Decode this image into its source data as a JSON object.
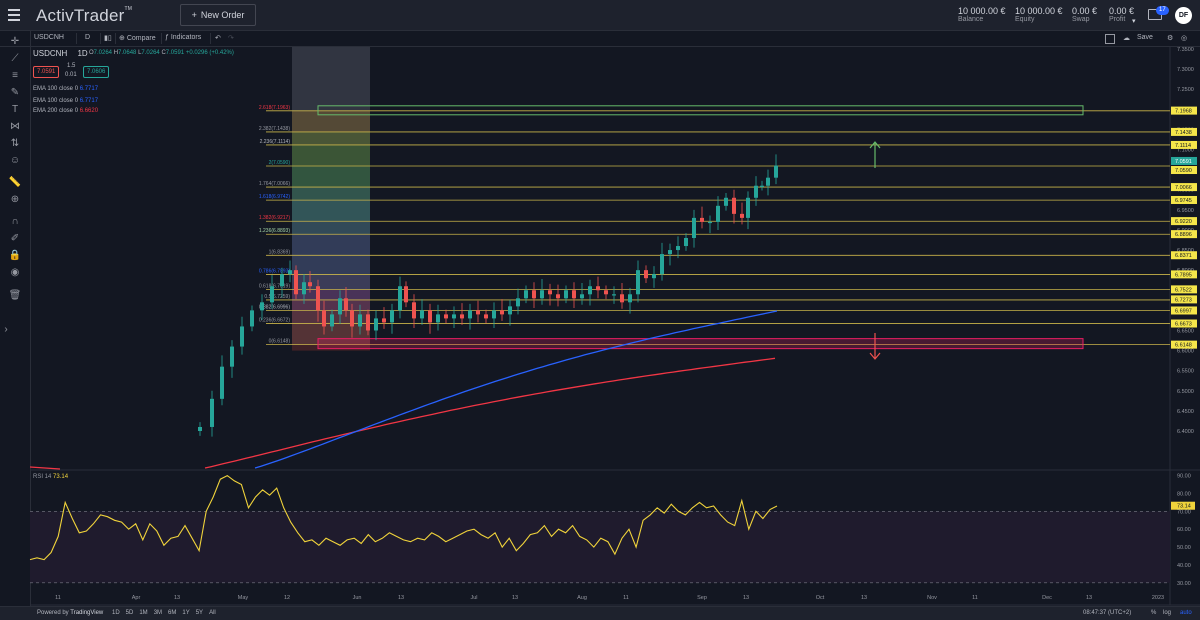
{
  "app": {
    "name": "ActivTrader",
    "new_order_label": "New Order"
  },
  "account": [
    {
      "value": "10 000.00 €",
      "label": "Balance"
    },
    {
      "value": "10 000.00 €",
      "label": "Equity"
    },
    {
      "value": "0.00 €",
      "label": "Swap"
    },
    {
      "value": "0.00 €",
      "label": "Profit"
    }
  ],
  "notifications": {
    "count": "17"
  },
  "user": {
    "initials": "DF"
  },
  "toolbar": {
    "symbol": "USDCNH",
    "interval": "D",
    "compare_label": "Compare",
    "indicators_label": "Indicators",
    "save_label": "Save"
  },
  "legend": {
    "symbol": "USDCNH",
    "interval": "1D",
    "o_key": "O",
    "o": "7.0264",
    "h_key": "H",
    "h": "7.0648",
    "l_key": "L",
    "l": "7.0264",
    "c_key": "C",
    "c": "7.0591",
    "change": "+0.0296 (+0.42%)",
    "sell": "7.0591",
    "spread_top": "1.5",
    "spread_bottom": "0.01",
    "buy": "7.0606"
  },
  "indicators": [
    {
      "label": "EMA 100 close 0",
      "value": "6.7717",
      "color": "#2962ff"
    },
    {
      "label": "EMA 100 close 0",
      "value": "6.7717",
      "color": "#2962ff"
    },
    {
      "label": "EMA 200 close 0",
      "value": "6.6620",
      "color": "#f23645"
    }
  ],
  "rsi": {
    "label": "RSI 14",
    "value": "73.14"
  },
  "price_axis": [
    "7.3500",
    "7.3000",
    "7.2500",
    "7.2000",
    "7.1500",
    "7.1000",
    "7.0500",
    "7.0000",
    "6.9500",
    "6.9000",
    "6.8500",
    "6.8000",
    "6.7500",
    "6.7000",
    "6.6500",
    "6.6000",
    "6.5500",
    "6.5000",
    "6.4500",
    "6.4000"
  ],
  "fib_axis_labels": [
    "7.1968",
    "7.1438",
    "7.1114",
    "7.0591",
    "7.0590",
    "7.0066",
    "6.9745",
    "6.9220",
    "6.8896",
    "6.8371",
    "6.7895",
    "6.7522",
    "6.7273",
    "6.6997",
    "6.6673",
    "6.6148"
  ],
  "fib_levels": [
    {
      "label": "2.618(7.1963)",
      "color": "#f23645"
    },
    {
      "label": "2.382(7.1438)",
      "color": "#9598a1"
    },
    {
      "label": "2.236(7.1114)",
      "color": "#b2b5be"
    },
    {
      "label": "2(7.0590)",
      "color": "#26a69a"
    },
    {
      "label": "1.764(7.0066)",
      "color": "#9598a1"
    },
    {
      "label": "1.618(6.9742)",
      "color": "#2962ff"
    },
    {
      "label": "1.382(6.9217)",
      "color": "#f23645"
    },
    {
      "label": "1.236(6.8893)",
      "color": "#a5d6a7"
    },
    {
      "label": "1(6.8369)",
      "color": "#9598a1"
    },
    {
      "label": "0.786(6.7893)",
      "color": "#2962ff"
    },
    {
      "label": "0.618(6.7519)",
      "color": "#9598a1"
    },
    {
      "label": "0.5(6.7259)",
      "color": "#9598a1"
    },
    {
      "label": "0.382(6.6996)",
      "color": "#b2b5be"
    },
    {
      "label": "0.236(6.6672)",
      "color": "#9598a1"
    },
    {
      "label": "0(6.6148)",
      "color": "#9598a1"
    }
  ],
  "rsi_axis": [
    "90.00",
    "80.00",
    "73.14",
    "70.00",
    "60.00",
    "50.00",
    "40.00",
    "30.00"
  ],
  "time_axis": [
    "11",
    "Apr",
    "13",
    "May",
    "12",
    "Jun",
    "13",
    "Jul",
    "13",
    "Aug",
    "11",
    "Sep",
    "13",
    "Oct",
    "13",
    "Nov",
    "11",
    "Dec",
    "13",
    "2023"
  ],
  "bottom": {
    "ranges": [
      "1D",
      "5D",
      "1M",
      "3M",
      "6M",
      "1Y",
      "5Y",
      "All"
    ],
    "powered_by": "Powered by",
    "provider": "TradingView",
    "clock": "08:47:37 (UTC+2)",
    "pct": "%",
    "log": "log",
    "auto": "auto"
  },
  "colors": {
    "bull": "#26a69a",
    "bear": "#ef5350",
    "fib_line": "#c9b44a",
    "rsi": "#f0d33b",
    "ema_blue": "#2962ff",
    "ema_red": "#f23645",
    "label_bg": "#f5e64a"
  }
}
